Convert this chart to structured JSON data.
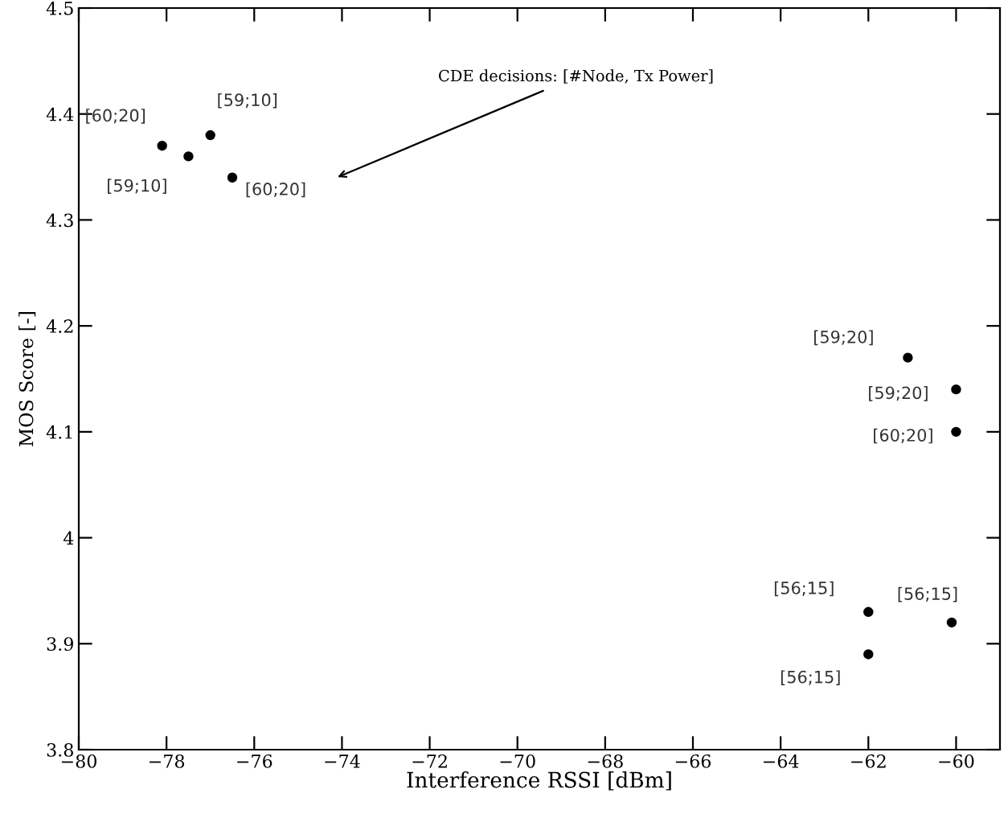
{
  "chart_data": {
    "type": "scatter",
    "xlabel": "Interference RSSI [dBm]",
    "ylabel": "MOS Score [-]",
    "x": [
      -78.1,
      -77.5,
      -77.0,
      -76.5,
      -61.1,
      -60.0,
      -60.0,
      -62.0,
      -62.0,
      -60.1
    ],
    "values": [
      4.37,
      4.36,
      4.38,
      4.34,
      4.17,
      4.14,
      4.1,
      3.93,
      3.89,
      3.92
    ],
    "value_labels": [
      "[60;20]",
      "[59;10]",
      "[59;10]",
      "[60;20]",
      "[59;20]",
      "[59;20]",
      "[60;20]",
      "[56;15]",
      "[56;15]",
      "[56;15]"
    ],
    "color": "#000000",
    "marker": "circle",
    "grid": false,
    "legend": false,
    "xlim": [
      -80,
      -59
    ],
    "ylim": [
      3.8,
      4.5
    ],
    "xticks": [
      -80,
      -78,
      -76,
      -74,
      -72,
      -70,
      -68,
      -66,
      -64,
      -62,
      -60
    ],
    "yticks": [
      3.8,
      3.9,
      {
        "value": 4.0,
        "label": "4"
      },
      4.1,
      4.2,
      4.3,
      4.4,
      4.5
    ],
    "annotations": [
      "CDE decisions: [#Node, Tx Power]"
    ]
  }
}
